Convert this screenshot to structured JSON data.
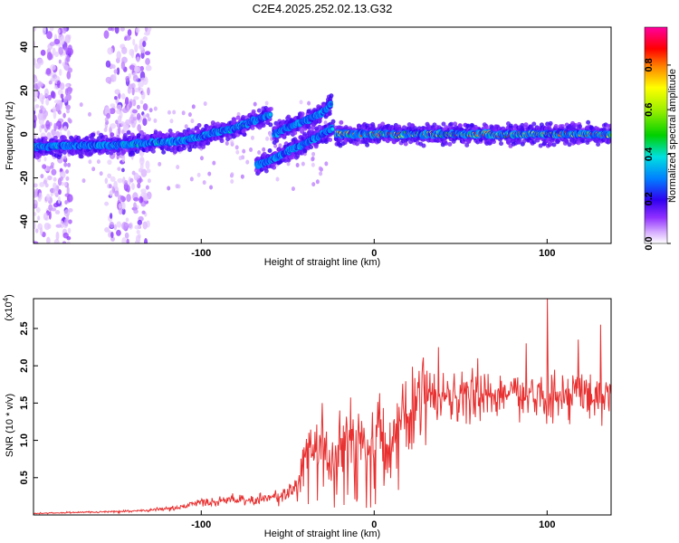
{
  "title": "C2E4.2025.252.02.13.G32",
  "chart_data": [
    {
      "type": "heatmap",
      "xlabel": "Height of straight line (km)",
      "ylabel": "Frequency (Hz)",
      "xlim": [
        -197,
        137
      ],
      "ylim": [
        -50,
        49
      ],
      "xticks": [
        -100,
        0,
        100
      ],
      "yticks": [
        -40,
        -20,
        0,
        20,
        40
      ],
      "colorbar": {
        "label": "Normalized spectral amplitude",
        "ticks": [
          "0.0",
          "0.2",
          "0.4",
          "0.6",
          "0.8"
        ],
        "tick_values": [
          0.0,
          0.2,
          0.4,
          0.6,
          0.8
        ],
        "range": [
          0,
          0.97
        ]
      },
      "ridges": [
        {
          "name": "main-trace-left",
          "x": [
            -197,
            -170,
            -150,
            -130,
            -110,
            -95,
            -80,
            -70,
            -60
          ],
          "y": [
            -6,
            -5,
            -5,
            -4,
            -3,
            0,
            3,
            6,
            9
          ],
          "amplitude": 0.4
        },
        {
          "name": "upper-branch",
          "x": [
            -58,
            -50,
            -40,
            -30,
            -25
          ],
          "y": [
            0,
            3,
            6,
            10,
            14
          ],
          "amplitude": 0.35
        },
        {
          "name": "lower-branch",
          "x": [
            -68,
            -60,
            -50,
            -40,
            -30,
            -24
          ],
          "y": [
            -14,
            -12,
            -8,
            -4,
            0,
            3
          ],
          "amplitude": 0.35
        },
        {
          "name": "main-trace-right",
          "x": [
            -22,
            0,
            20,
            40,
            60,
            80,
            100,
            120,
            137
          ],
          "y": [
            0,
            0,
            0,
            0,
            0,
            0,
            0,
            0,
            0
          ],
          "amplitude": 0.8
        }
      ],
      "noise_bands": [
        [
          -197,
          -175
        ],
        [
          -155,
          -130
        ]
      ]
    },
    {
      "type": "line",
      "xlabel": "Height of straight line (km)",
      "ylabel": "SNR (10 * v/v)",
      "scale_note": "(x10",
      "scale_exponent": "4",
      "xlim": [
        -197,
        137
      ],
      "ylim": [
        0,
        2.9
      ],
      "xticks": [
        -100,
        0,
        100
      ],
      "yticks": [
        "0.5",
        "1.0",
        "1.5",
        "2.0",
        "2.5"
      ],
      "ytick_values": [
        0.5,
        1.0,
        1.5,
        2.0,
        2.5
      ],
      "color": "#e83030",
      "series": [
        {
          "name": "SNR",
          "x": [
            -197,
            -180,
            -160,
            -140,
            -120,
            -110,
            -100,
            -90,
            -80,
            -70,
            -60,
            -50,
            -45,
            -40,
            -35,
            -30,
            -25,
            -20,
            -15,
            -10,
            -5,
            0,
            5,
            10,
            15,
            20,
            25,
            30,
            35,
            40,
            50,
            60,
            70,
            80,
            90,
            100,
            110,
            120,
            130,
            137
          ],
          "y": [
            0.02,
            0.03,
            0.04,
            0.05,
            0.08,
            0.12,
            0.18,
            0.2,
            0.22,
            0.2,
            0.22,
            0.28,
            0.45,
            0.7,
            0.9,
            1.0,
            0.6,
            0.9,
            1.1,
            1.0,
            0.9,
            1.05,
            1.25,
            0.9,
            1.2,
            1.35,
            1.45,
            1.55,
            1.6,
            1.62,
            1.6,
            1.62,
            1.6,
            1.63,
            1.6,
            1.62,
            1.55,
            1.6,
            1.6,
            1.6
          ]
        }
      ],
      "spikes": [
        {
          "x": -30,
          "y": 1.5
        },
        {
          "x": -20,
          "y": 1.4
        },
        {
          "x": 37,
          "y": 2.25
        },
        {
          "x": 60,
          "y": 2.1
        },
        {
          "x": 88,
          "y": 2.3
        },
        {
          "x": 100,
          "y": 2.9
        },
        {
          "x": 118,
          "y": 2.35
        },
        {
          "x": 131,
          "y": 2.55
        }
      ]
    }
  ]
}
